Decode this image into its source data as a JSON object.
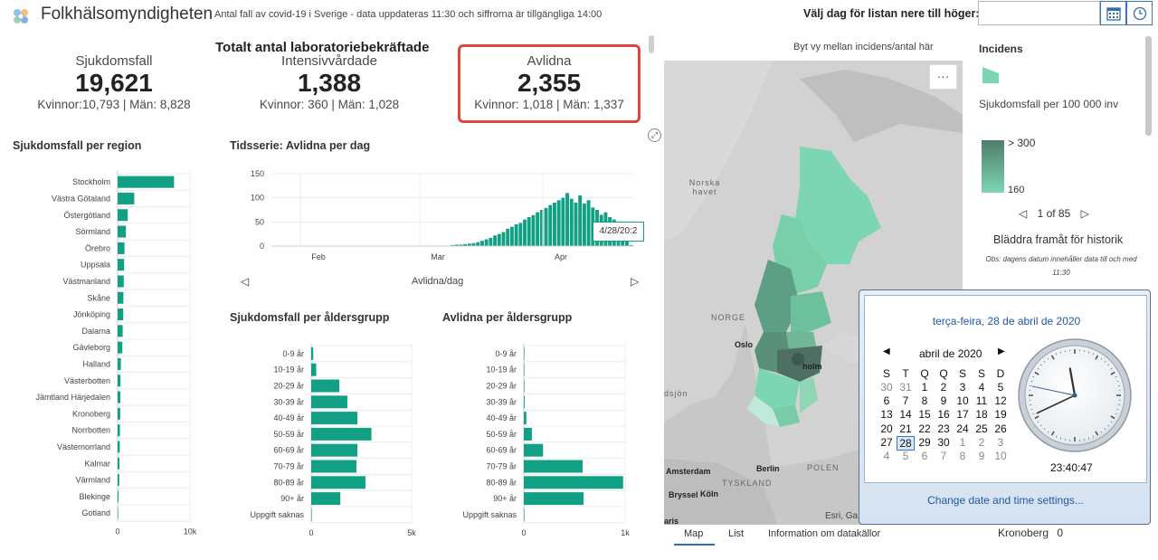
{
  "header": {
    "title": "Folkhälsomyndigheten",
    "subtitle": "Antal fall av covid-19 i Sverige - data uppdateras 11:30 och siffrorna är tillgängliga 14:00",
    "date_label": "Välj dag för listan nere till höger:",
    "date_value": "",
    "icons": [
      "logo-icon",
      "calendar-icon",
      "clock-icon"
    ]
  },
  "totals": {
    "heading": "Totalt antal laboratoriebekräftade",
    "cases": {
      "label": "Sjukdomsfall",
      "value": "19,621",
      "sub": "Kvinnor:10,793 | Män: 8,828"
    },
    "icu": {
      "label": "Intensivvårdade",
      "value": "1,388",
      "sub": "Kvinnor: 360 | Män: 1,028"
    },
    "deaths": {
      "label": "Avlidna",
      "value": "2,355",
      "sub": "Kvinnor: 1,018 | Män: 1,337"
    }
  },
  "colors": {
    "bar": "#12a085",
    "highlight_border": "#e0443a",
    "link": "#1e5aa8",
    "legend_dark": "#4e7c6c",
    "legend_light": "#7dd6b3"
  },
  "region_panel": {
    "title": "Sjukdomsfall per region"
  },
  "timeseries_panel": {
    "title": "Tidsserie: Avlidna per dag",
    "xlabel": "Avlidna/dag",
    "tooltip": "4/28/20:2"
  },
  "age_cases_panel": {
    "title": "Sjukdomsfall per åldersgrupp"
  },
  "age_deaths_panel": {
    "title": "Avlidna per åldersgrupp"
  },
  "chart_data": [
    {
      "type": "bar",
      "orientation": "horizontal",
      "title": "Sjukdomsfall per region",
      "categories": [
        "Stockholm",
        "Västra Götaland",
        "Östergötland",
        "Sörmland",
        "Örebro",
        "Uppsala",
        "Västmanland",
        "Skåne",
        "Jönköping",
        "Dalarna",
        "Gävleborg",
        "Halland",
        "Västerbotten",
        "Jämtland Härjedalen",
        "Kronoberg",
        "Norrbotten",
        "Västernorrland",
        "Kalmar",
        "Värmland",
        "Blekinge",
        "Gotland"
      ],
      "values": [
        7800,
        2300,
        1400,
        1150,
        950,
        900,
        850,
        800,
        780,
        700,
        650,
        450,
        400,
        380,
        360,
        320,
        300,
        250,
        230,
        130,
        40
      ],
      "xlim": [
        0,
        10000
      ],
      "xticks": [
        "0",
        "10k"
      ]
    },
    {
      "type": "bar",
      "title": "Tidsserie: Avlidna per dag",
      "xlabel": "Avlidna/dag",
      "ylim": [
        0,
        150
      ],
      "yticks": [
        "0",
        "50",
        "100",
        "150"
      ],
      "xticks": [
        "Feb",
        "Mar",
        "Apr"
      ],
      "values": [
        0,
        0,
        0,
        0,
        0,
        0,
        0,
        0,
        0,
        0,
        0,
        0,
        0,
        0,
        0,
        0,
        0,
        0,
        0,
        0,
        0,
        0,
        0,
        0,
        0,
        0,
        0,
        0,
        0,
        0,
        0,
        0,
        0,
        0,
        0,
        0,
        0,
        0,
        1,
        1,
        1,
        1,
        2,
        3,
        3,
        4,
        5,
        6,
        8,
        11,
        14,
        17,
        22,
        25,
        29,
        36,
        40,
        45,
        48,
        55,
        60,
        64,
        70,
        75,
        79,
        85,
        90,
        95,
        100,
        110,
        98,
        90,
        105,
        88,
        95,
        80,
        75,
        65,
        70,
        60,
        55,
        50,
        40,
        20,
        2
      ]
    },
    {
      "type": "bar",
      "orientation": "horizontal",
      "title": "Sjukdomsfall per åldersgrupp",
      "categories": [
        "0-9 år",
        "10-19 år",
        "20-29 år",
        "30-39 år",
        "40-49 år",
        "50-59 år",
        "60-69 år",
        "70-79 år",
        "80-89 år",
        "90+ år",
        "Uppgift saknas"
      ],
      "values": [
        100,
        250,
        1400,
        1800,
        2300,
        3000,
        2300,
        2250,
        2700,
        1450,
        10
      ],
      "xlim": [
        0,
        5000
      ],
      "xticks": [
        "0",
        "5k"
      ]
    },
    {
      "type": "bar",
      "orientation": "horizontal",
      "title": "Avlidna per åldersgrupp",
      "categories": [
        "0-9 år",
        "10-19 år",
        "20-29 år",
        "30-39 år",
        "40-49 år",
        "50-59 år",
        "60-69 år",
        "70-79 år",
        "80-89 år",
        "90+ år",
        "Uppgift saknas"
      ],
      "values": [
        1,
        1,
        5,
        8,
        25,
        80,
        190,
        580,
        980,
        590,
        0
      ],
      "xlim": [
        0,
        1000
      ],
      "xticks": [
        "0",
        "1k"
      ]
    }
  ],
  "map": {
    "toggle_label": "Byt vy mellan incidens/antal här",
    "more_label": "···",
    "labels": {
      "norska_havet": "Norska\nhavet",
      "norge": "NORGE",
      "polen": "POLEN",
      "tyskland": "TYSKLAND"
    },
    "cities": {
      "oslo": "Oslo",
      "holm": "holm",
      "berlin": "Berlin",
      "amsterdam": "Amsterdam",
      "koln": "Köln",
      "brussel": "Bryssel",
      "sjon": "dsjön",
      "ris": "aris"
    },
    "attribution": "Esri, Ga",
    "tabs": [
      "Map",
      "List",
      "Information om datakällor"
    ]
  },
  "legend": {
    "title": "Incidens",
    "subtitle": "Sjukdomsfall per 100 000 inv",
    "top_label": "> 300",
    "bottom_label": "160",
    "pager": "1 of 85",
    "history_label": "Bläddra framåt för historik",
    "history_note": "Obs: dagens datum innehåller data till och med 11:30"
  },
  "list_row": {
    "label": "Kronoberg",
    "value": "0"
  },
  "datetime_popup": {
    "long_date": "terça-feira, 28 de abril de 2020",
    "month_label": "abril de 2020",
    "weekdays": [
      "S",
      "T",
      "Q",
      "Q",
      "S",
      "S",
      "D"
    ],
    "weeks": [
      [
        "30",
        "31",
        "1",
        "2",
        "3",
        "4",
        "5"
      ],
      [
        "6",
        "7",
        "8",
        "9",
        "10",
        "11",
        "12"
      ],
      [
        "13",
        "14",
        "15",
        "16",
        "17",
        "18",
        "19"
      ],
      [
        "20",
        "21",
        "22",
        "23",
        "24",
        "25",
        "26"
      ],
      [
        "27",
        "28",
        "29",
        "30",
        "1",
        "2",
        "3"
      ],
      [
        "4",
        "5",
        "6",
        "7",
        "8",
        "9",
        "10"
      ]
    ],
    "selected_day": "28",
    "time": "23:40:47",
    "clock_hours": 23,
    "clock_minutes": 40,
    "clock_seconds": 47,
    "settings_link": "Change date and time settings..."
  }
}
